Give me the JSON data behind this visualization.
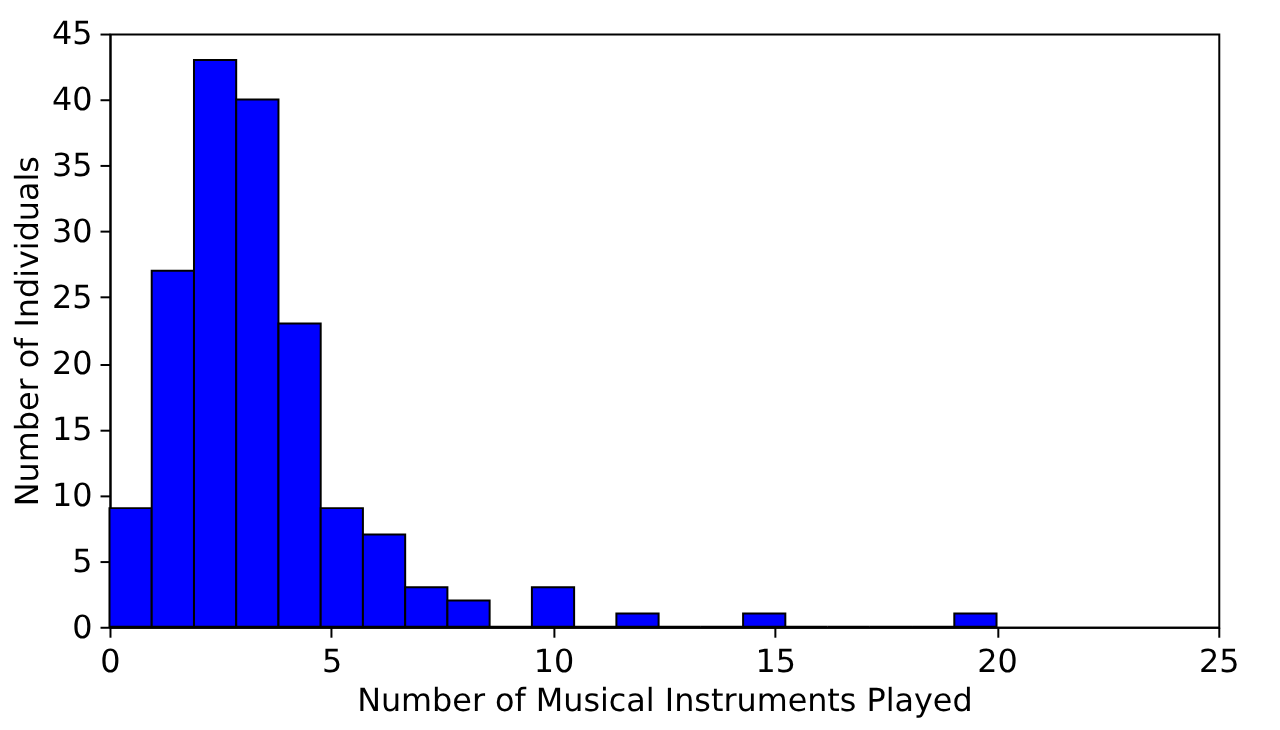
{
  "chart_data": {
    "type": "histogram",
    "xlabel": "Number of Musical Instruments Played",
    "ylabel": "Number of Individuals",
    "bins": [
      0,
      0.952,
      1.905,
      2.857,
      3.81,
      4.762,
      5.714,
      6.667,
      7.619,
      8.571,
      9.524,
      10.476,
      11.429,
      12.381,
      13.333,
      14.286,
      15.238,
      16.19,
      17.143,
      18.095,
      19.048,
      20
    ],
    "values": [
      9,
      27,
      43,
      40,
      23,
      9,
      7,
      3,
      2,
      0,
      3,
      0,
      1,
      0,
      0,
      1,
      0,
      0,
      0,
      0,
      1
    ],
    "color": "#0000ff",
    "xlim": [
      0,
      25
    ],
    "xticks": [
      0,
      5,
      10,
      15,
      20,
      25
    ],
    "ylim": [
      0,
      45
    ],
    "yticks": [
      0,
      5,
      10,
      15,
      20,
      25,
      30,
      35,
      40,
      45
    ],
    "grid": false
  }
}
